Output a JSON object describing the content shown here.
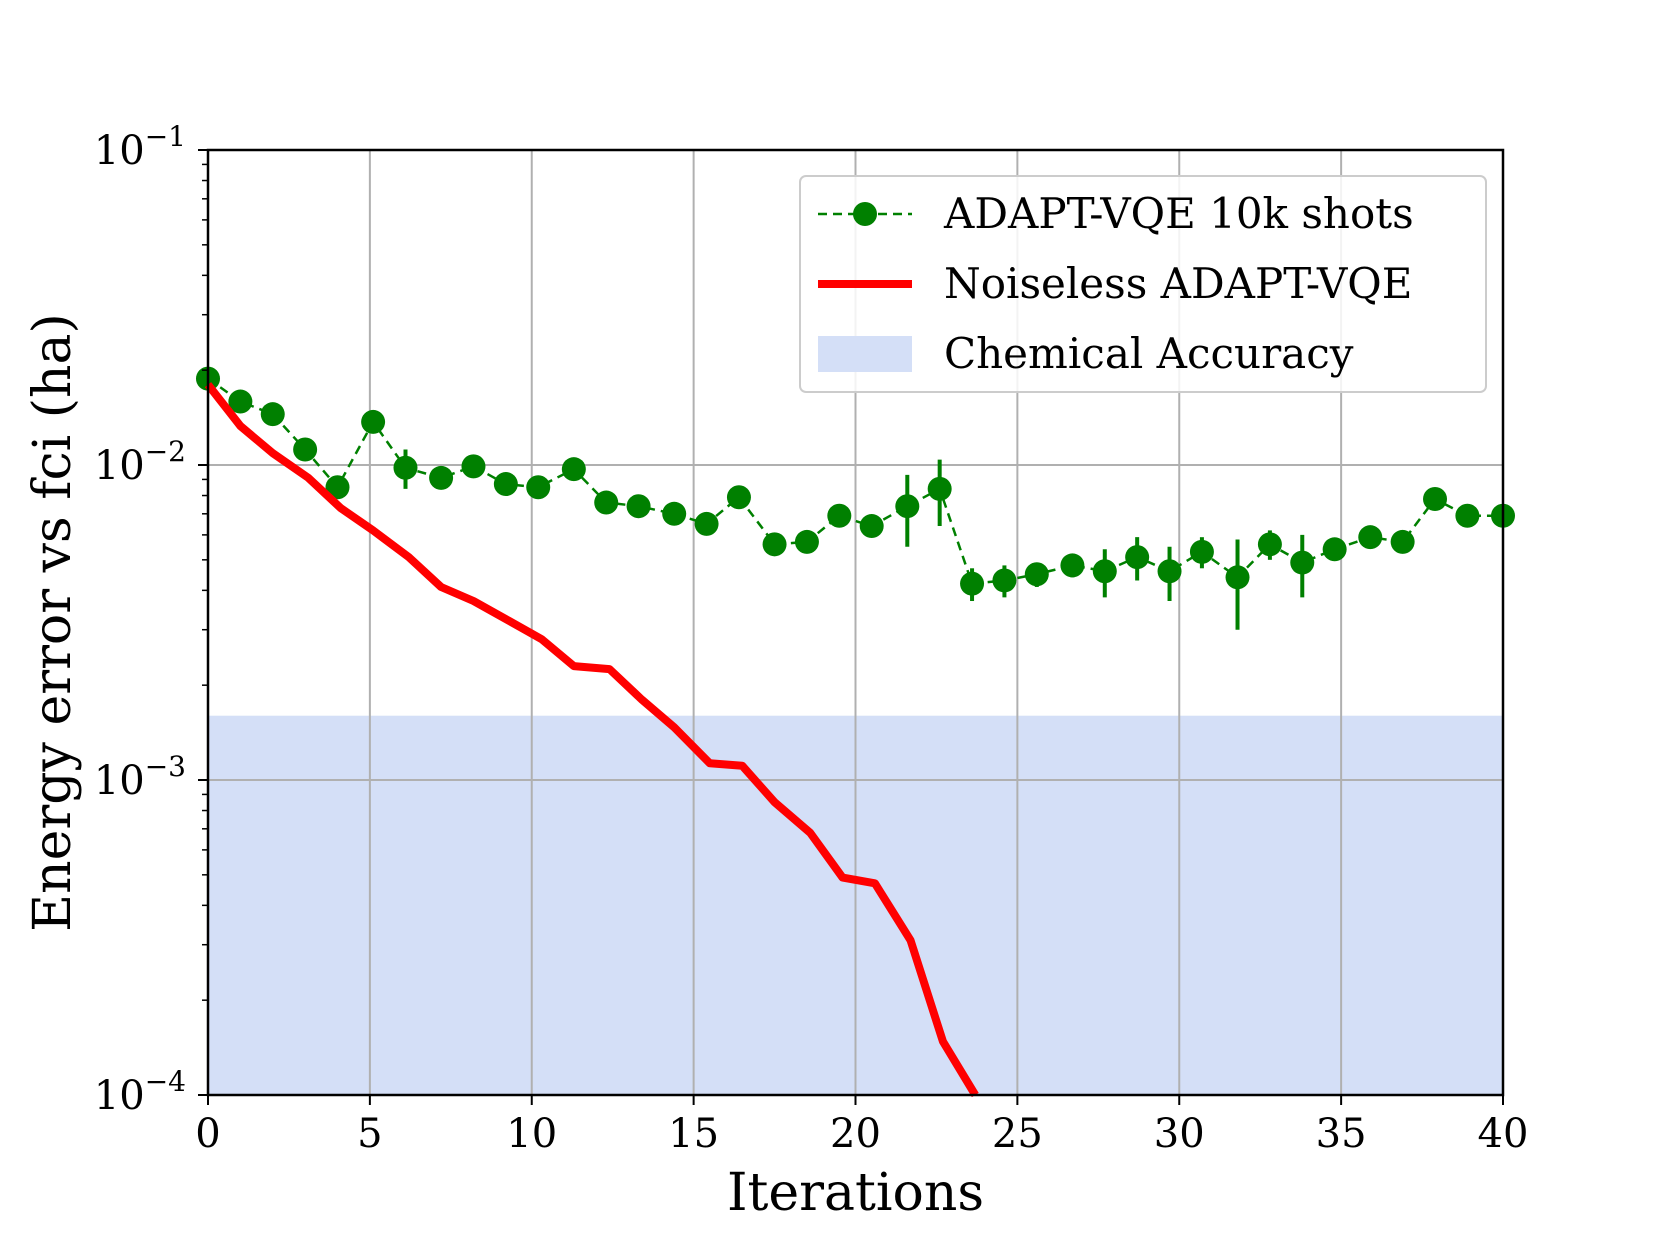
{
  "chart_data": {
    "type": "line",
    "title": "",
    "xlabel": "Iterations",
    "ylabel": "Energy error vs fci (ha)",
    "xlim": [
      0,
      40
    ],
    "ylim": [
      0.0001,
      0.1
    ],
    "yscale": "log",
    "grid": true,
    "legend_position": "top-right",
    "x_ticks": [
      "0",
      "5",
      "10",
      "15",
      "20",
      "25",
      "30",
      "35",
      "40"
    ],
    "x_tick_values": [
      0,
      5,
      10,
      15,
      20,
      25,
      30,
      35,
      40
    ],
    "y_ticks": [
      {
        "value": 0.1,
        "base": "10",
        "exp": "−1"
      },
      {
        "value": 0.01,
        "base": "10",
        "exp": "−2"
      },
      {
        "value": 0.001,
        "base": "10",
        "exp": "−3"
      },
      {
        "value": 0.0001,
        "base": "10",
        "exp": "−4"
      }
    ],
    "shaded_band": {
      "name": "Chemical Accuracy",
      "ymin": 0.0001,
      "ymax": 0.0016,
      "color": "#d4dff7"
    },
    "series": [
      {
        "name": "ADAPT-VQE 10k shots",
        "color": "#008000",
        "style": "dashed-markers",
        "points": [
          {
            "x": 0,
            "y": 0.0188,
            "err": 0.0005
          },
          {
            "x": 1,
            "y": 0.0159,
            "err": 0.0005
          },
          {
            "x": 2,
            "y": 0.0145,
            "err": 0.0005
          },
          {
            "x": 3,
            "y": 0.0112,
            "err": 0.0007
          },
          {
            "x": 4,
            "y": 0.0085,
            "err": 0.0007
          },
          {
            "x": 5.1,
            "y": 0.0137,
            "err": 0.0006
          },
          {
            "x": 6.1,
            "y": 0.0098,
            "err": 0.0014
          },
          {
            "x": 7.2,
            "y": 0.0091,
            "err": 0.0005
          },
          {
            "x": 8.2,
            "y": 0.0099,
            "err": 0.0005
          },
          {
            "x": 9.2,
            "y": 0.0087,
            "err": 0.0005
          },
          {
            "x": 10.2,
            "y": 0.0085,
            "err": 0.0005
          },
          {
            "x": 11.3,
            "y": 0.0097,
            "err": 0.0005
          },
          {
            "x": 12.3,
            "y": 0.0076,
            "err": 0.0004
          },
          {
            "x": 13.3,
            "y": 0.0074,
            "err": 0.0004
          },
          {
            "x": 14.4,
            "y": 0.007,
            "err": 0.0004
          },
          {
            "x": 15.4,
            "y": 0.0065,
            "err": 0.0004
          },
          {
            "x": 16.4,
            "y": 0.0079,
            "err": 0.0004
          },
          {
            "x": 17.5,
            "y": 0.0056,
            "err": 0.0004
          },
          {
            "x": 18.5,
            "y": 0.0057,
            "err": 0.0004
          },
          {
            "x": 19.5,
            "y": 0.0069,
            "err": 0.0004
          },
          {
            "x": 20.5,
            "y": 0.0064,
            "err": 0.0004
          },
          {
            "x": 21.6,
            "y": 0.0074,
            "err": 0.0019
          },
          {
            "x": 22.6,
            "y": 0.0084,
            "err": 0.002
          },
          {
            "x": 23.6,
            "y": 0.0042,
            "err": 0.0005
          },
          {
            "x": 24.6,
            "y": 0.0043,
            "err": 0.0005
          },
          {
            "x": 25.6,
            "y": 0.0045,
            "err": 0.0004
          },
          {
            "x": 26.7,
            "y": 0.0048,
            "err": 0.0004
          },
          {
            "x": 27.7,
            "y": 0.0046,
            "err": 0.0008
          },
          {
            "x": 28.7,
            "y": 0.0051,
            "err": 0.0008
          },
          {
            "x": 29.7,
            "y": 0.0046,
            "err": 0.0009
          },
          {
            "x": 30.7,
            "y": 0.0053,
            "err": 0.0006
          },
          {
            "x": 31.8,
            "y": 0.0044,
            "err": 0.0014
          },
          {
            "x": 32.8,
            "y": 0.0056,
            "err": 0.0006
          },
          {
            "x": 33.8,
            "y": 0.0049,
            "err": 0.0011
          },
          {
            "x": 34.8,
            "y": 0.0054,
            "err": 0.0004
          },
          {
            "x": 35.9,
            "y": 0.0059,
            "err": 0.0004
          },
          {
            "x": 36.9,
            "y": 0.0057,
            "err": 0.0004
          },
          {
            "x": 37.9,
            "y": 0.0078,
            "err": 0.0005
          },
          {
            "x": 38.9,
            "y": 0.0069,
            "err": 0.0004
          },
          {
            "x": 40,
            "y": 0.0069,
            "err": 0.0004
          }
        ]
      },
      {
        "name": "Noiseless ADAPT-VQE",
        "color": "#ff0000",
        "style": "solid",
        "points": [
          {
            "x": 0,
            "y": 0.018
          },
          {
            "x": 1,
            "y": 0.0133
          },
          {
            "x": 2,
            "y": 0.0109
          },
          {
            "x": 3.1,
            "y": 0.0091
          },
          {
            "x": 4.1,
            "y": 0.0073
          },
          {
            "x": 5.1,
            "y": 0.0062
          },
          {
            "x": 6.2,
            "y": 0.0051
          },
          {
            "x": 7.2,
            "y": 0.0041
          },
          {
            "x": 8.2,
            "y": 0.0037
          },
          {
            "x": 9.3,
            "y": 0.0032
          },
          {
            "x": 10.3,
            "y": 0.0028
          },
          {
            "x": 11.3,
            "y": 0.0023
          },
          {
            "x": 12.4,
            "y": 0.00225
          },
          {
            "x": 13.4,
            "y": 0.0018
          },
          {
            "x": 14.4,
            "y": 0.00147
          },
          {
            "x": 15.5,
            "y": 0.00113
          },
          {
            "x": 16.5,
            "y": 0.00111
          },
          {
            "x": 17.5,
            "y": 0.00085
          },
          {
            "x": 18.6,
            "y": 0.00068
          },
          {
            "x": 19.6,
            "y": 0.00049
          },
          {
            "x": 20.6,
            "y": 0.00047
          },
          {
            "x": 21.7,
            "y": 0.00031
          },
          {
            "x": 22.7,
            "y": 0.000148
          },
          {
            "x": 23.7,
            "y": 0.0001
          }
        ]
      }
    ],
    "legend": [
      {
        "label": "ADAPT-VQE 10k shots",
        "kind": "dashed-marker",
        "color": "#008000"
      },
      {
        "label": "Noiseless ADAPT-VQE",
        "kind": "line",
        "color": "#ff0000"
      },
      {
        "label": "Chemical Accuracy",
        "kind": "patch",
        "color": "#d4dff7"
      }
    ]
  }
}
